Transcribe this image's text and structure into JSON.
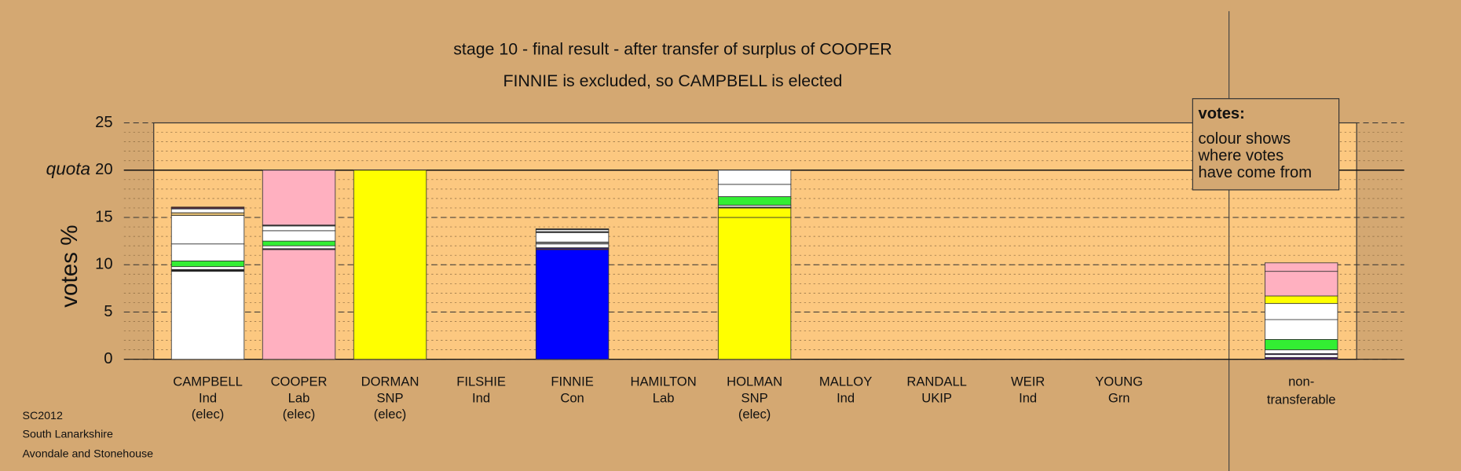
{
  "chart_data": {
    "type": "stacked-bar",
    "title": "stage 10 - final result - after transfer of surplus of COOPER",
    "subtitle": "FINNIE is excluded, so CAMPBELL is elected",
    "ylabel": "votes %",
    "ylim": [
      0,
      25
    ],
    "yticks": [
      0,
      5,
      10,
      15,
      20,
      25
    ],
    "minor_grid_step": 1,
    "quota": {
      "value": 20,
      "label": "quota"
    },
    "categories": [
      [
        "CAMPBELL",
        "Ind",
        "(elec)"
      ],
      [
        "COOPER",
        "Lab",
        "(elec)"
      ],
      [
        "DORMAN",
        "SNP",
        "(elec)"
      ],
      [
        "FILSHIE",
        "Ind"
      ],
      [
        "FINNIE",
        "Con"
      ],
      [
        "HAMILTON",
        "Lab"
      ],
      [
        "HOLMAN",
        "SNP",
        "(elec)"
      ],
      [
        "MALLOY",
        "Ind"
      ],
      [
        "RANDALL",
        "UKIP"
      ],
      [
        "WEIR",
        "Ind"
      ],
      [
        "YOUNG",
        "Grn"
      ],
      [
        "non-",
        "transferable"
      ]
    ],
    "stacks": [
      [
        {
          "value": 9.3,
          "color": "#ffffff"
        },
        {
          "value": 0.2,
          "color": "#222222"
        },
        {
          "value": 0.3,
          "color": "#ffffff"
        },
        {
          "value": 0.6,
          "color": "#33ee33"
        },
        {
          "value": 1.8,
          "color": "#ffffff"
        },
        {
          "value": 3.0,
          "color": "#ffffff"
        },
        {
          "value": 0.3,
          "color": "#d9b56e"
        },
        {
          "value": 0.4,
          "color": "#ffffff"
        },
        {
          "value": 0.1,
          "color": "#6a2a7a"
        },
        {
          "value": 0.1,
          "color": "#8a1a1a"
        }
      ],
      [
        {
          "value": 11.6,
          "color": "#ffb0c0"
        },
        {
          "value": 0.1,
          "color": "#222222"
        },
        {
          "value": 0.3,
          "color": "#ffffff"
        },
        {
          "value": 0.5,
          "color": "#33ee33"
        },
        {
          "value": 1.1,
          "color": "#ffffff"
        },
        {
          "value": 0.5,
          "color": "#ffffff"
        },
        {
          "value": 0.1,
          "color": "#444444"
        },
        {
          "value": 5.8,
          "color": "#ffb0c0"
        }
      ],
      [
        {
          "value": 20,
          "color": "#ffff00"
        }
      ],
      [],
      [
        {
          "value": 11.6,
          "color": "#0000ff"
        },
        {
          "value": 0.1,
          "color": "#cc2222"
        },
        {
          "value": 0.1,
          "color": "#0000ff"
        },
        {
          "value": 0.4,
          "color": "#ffffff"
        },
        {
          "value": 0.2,
          "color": "#888888"
        },
        {
          "value": 1.0,
          "color": "#ffffff"
        },
        {
          "value": 0.1,
          "color": "#222222"
        },
        {
          "value": 0.2,
          "color": "#ffffff"
        },
        {
          "value": 0.1,
          "color": "#444444"
        }
      ],
      [],
      [
        {
          "value": 15.0,
          "color": "#ffff00"
        },
        {
          "value": 1.0,
          "color": "#ffff00"
        },
        {
          "value": 0.1,
          "color": "#222222"
        },
        {
          "value": 0.2,
          "color": "#ffffff"
        },
        {
          "value": 0.9,
          "color": "#33ee33"
        },
        {
          "value": 1.3,
          "color": "#ffffff"
        },
        {
          "value": 1.5,
          "color": "#ffffff"
        }
      ],
      [],
      [],
      [],
      [],
      [
        {
          "value": 0.2,
          "color": "#4a1a6a"
        },
        {
          "value": 0.3,
          "color": "#ffffff"
        },
        {
          "value": 0.1,
          "color": "#4a1a6a"
        },
        {
          "value": 0.4,
          "color": "#ffffff"
        },
        {
          "value": 1.1,
          "color": "#33ee33"
        },
        {
          "value": 2.1,
          "color": "#ffffff"
        },
        {
          "value": 1.7,
          "color": "#ffffff"
        },
        {
          "value": 0.8,
          "color": "#ffff00"
        },
        {
          "value": 2.6,
          "color": "#ffb0c0"
        },
        {
          "value": 0.9,
          "color": "#ffb0c0"
        }
      ]
    ],
    "legend": {
      "title": "votes:",
      "lines": [
        "colour shows",
        "where votes",
        "have come from"
      ]
    },
    "footnotes": [
      "SC2012",
      "South Lanarkshire",
      "Avondale and Stonehouse"
    ]
  }
}
